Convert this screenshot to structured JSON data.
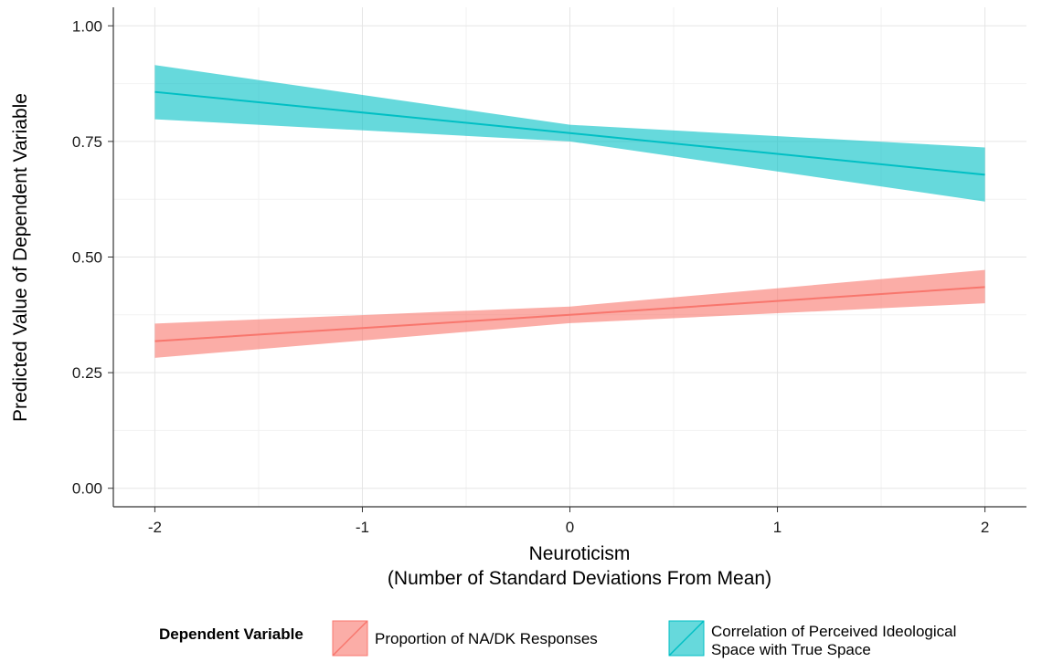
{
  "chart_data": {
    "type": "line",
    "xlabel": "Neuroticism",
    "xlabel_sub": "(Number of Standard Deviations From Mean)",
    "ylabel": "Predicted Value of Dependent Variable",
    "xlim": [
      -2.2,
      2.2
    ],
    "ylim": [
      -0.04,
      1.04
    ],
    "x_ticks": [
      -2,
      -1,
      0,
      1,
      2
    ],
    "x_tick_labels": [
      "-2",
      "-1",
      "0",
      "1",
      "2"
    ],
    "y_ticks": [
      0,
      0.25,
      0.5,
      0.75,
      1.0
    ],
    "y_tick_labels": [
      "0.00",
      "0.25",
      "0.50",
      "0.75",
      "1.00"
    ],
    "grid": true,
    "legend_title": "Dependent Variable",
    "legend_position": "bottom",
    "series": [
      {
        "name": "Proportion of NA/DK Responses",
        "color": "#F8766D",
        "x": [
          -2,
          0,
          2
        ],
        "y": [
          0.318,
          0.375,
          0.435
        ],
        "ci_low": [
          0.282,
          0.357,
          0.4
        ],
        "ci_high": [
          0.356,
          0.393,
          0.472
        ]
      },
      {
        "name": "Correlation of Perceived Ideological Space with True Space",
        "legend_lines": [
          "Correlation of Perceived Ideological",
          "Space with True Space"
        ],
        "color": "#00BFC4",
        "x": [
          -2,
          0,
          2
        ],
        "y": [
          0.857,
          0.768,
          0.678
        ],
        "ci_low": [
          0.798,
          0.75,
          0.62
        ],
        "ci_high": [
          0.915,
          0.786,
          0.737
        ]
      }
    ]
  }
}
